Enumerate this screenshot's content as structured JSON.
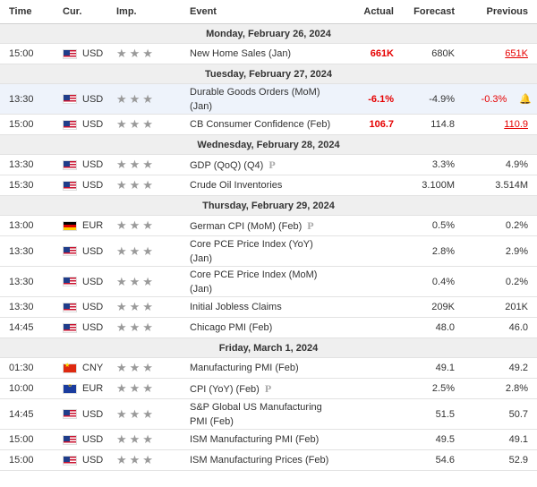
{
  "headers": {
    "time": "Time",
    "cur": "Cur.",
    "imp": "Imp.",
    "event": "Event",
    "actual": "Actual",
    "forecast": "Forecast",
    "previous": "Previous"
  },
  "colors": {
    "positive": "#e60000"
  },
  "icons": {
    "flag_us": "us-flag-icon",
    "flag_de": "germany-flag-icon",
    "flag_cn": "china-flag-icon",
    "flag_eu": "eu-flag-icon",
    "star": "star-icon",
    "preliminary": "preliminary-icon",
    "alert": "bell-icon"
  },
  "days": [
    {
      "date": "Monday, February 26, 2024"
    },
    {
      "date": "Tuesday, February 27, 2024"
    },
    {
      "date": "Wednesday, February 28, 2024"
    },
    {
      "date": "Thursday, February 29, 2024"
    },
    {
      "date": "Friday, March 1, 2024"
    }
  ],
  "events": [
    {
      "time": "15:00",
      "currency": "USD",
      "stars": "★★★",
      "event": "New Home Sales (Jan)",
      "actual": "661K",
      "forecast": "680K",
      "previous": "651K"
    },
    {
      "time": "13:30",
      "currency": "USD",
      "stars": "★★★",
      "event": "Durable Goods Orders (MoM) (Jan)",
      "actual": "-6.1%",
      "forecast": "-4.9%",
      "previous": "-0.3%"
    },
    {
      "time": "15:00",
      "currency": "USD",
      "stars": "★★★",
      "event": "CB Consumer Confidence (Feb)",
      "actual": "106.7",
      "forecast": "114.8",
      "previous": "110.9"
    },
    {
      "time": "13:30",
      "currency": "USD",
      "stars": "★★★",
      "event": "GDP (QoQ) (Q4)",
      "preliminary": "P",
      "actual": "",
      "forecast": "3.3%",
      "previous": "4.9%"
    },
    {
      "time": "15:30",
      "currency": "USD",
      "stars": "★★★",
      "event": "Crude Oil Inventories",
      "actual": "",
      "forecast": "3.100M",
      "previous": "3.514M"
    },
    {
      "time": "13:00",
      "currency": "EUR",
      "stars": "★★★",
      "event": "German CPI (MoM) (Feb)",
      "preliminary": "P",
      "actual": "",
      "forecast": "0.5%",
      "previous": "0.2%"
    },
    {
      "time": "13:30",
      "currency": "USD",
      "stars": "★★★",
      "event": "Core PCE Price Index (YoY) (Jan)",
      "actual": "",
      "forecast": "2.8%",
      "previous": "2.9%"
    },
    {
      "time": "13:30",
      "currency": "USD",
      "stars": "★★★",
      "event": "Core PCE Price Index (MoM) (Jan)",
      "actual": "",
      "forecast": "0.4%",
      "previous": "0.2%"
    },
    {
      "time": "13:30",
      "currency": "USD",
      "stars": "★★★",
      "event": "Initial Jobless Claims",
      "actual": "",
      "forecast": "209K",
      "previous": "201K"
    },
    {
      "time": "14:45",
      "currency": "USD",
      "stars": "★★★",
      "event": "Chicago PMI (Feb)",
      "actual": "",
      "forecast": "48.0",
      "previous": "46.0"
    },
    {
      "time": "01:30",
      "currency": "CNY",
      "stars": "★★★",
      "event": "Manufacturing PMI (Feb)",
      "actual": "",
      "forecast": "49.1",
      "previous": "49.2"
    },
    {
      "time": "10:00",
      "currency": "EUR",
      "stars": "★★★",
      "event": "CPI (YoY) (Feb)",
      "preliminary": "P",
      "actual": "",
      "forecast": "2.5%",
      "previous": "2.8%"
    },
    {
      "time": "14:45",
      "currency": "USD",
      "stars": "★★★",
      "event": "S&P Global US Manufacturing PMI (Feb)",
      "actual": "",
      "forecast": "51.5",
      "previous": "50.7"
    },
    {
      "time": "15:00",
      "currency": "USD",
      "stars": "★★★",
      "event": "ISM Manufacturing PMI (Feb)",
      "actual": "",
      "forecast": "49.5",
      "previous": "49.1"
    },
    {
      "time": "15:00",
      "currency": "USD",
      "stars": "★★★",
      "event": "ISM Manufacturing Prices (Feb)",
      "actual": "",
      "forecast": "54.6",
      "previous": "52.9"
    }
  ]
}
